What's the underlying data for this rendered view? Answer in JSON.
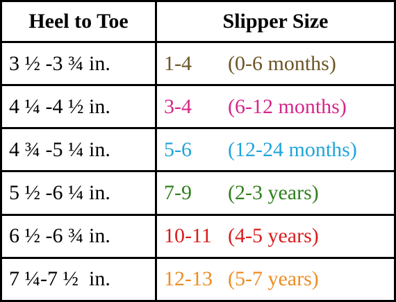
{
  "table": {
    "header": [
      "Heel to Toe",
      "Slipper Size"
    ],
    "rows": [
      {
        "heel": "3 ½ -3 ¾ in.",
        "size": "1-4",
        "age": "(0-6 months)",
        "color": "#6b5526"
      },
      {
        "heel": "4 ¼ -4 ½ in.",
        "size": "3-4",
        "age": "(6-12 months)",
        "color": "#d6268a"
      },
      {
        "heel": "4 ¾ -5 ¼ in.",
        "size": "5-6",
        "age": "(12-24 months)",
        "color": "#20a4da"
      },
      {
        "heel": "5 ½ -6 ¼ in.",
        "size": "7-9",
        "age": "(2-3 years)",
        "color": "#2f7f1c"
      },
      {
        "heel": "6 ½ -6 ¾ in.",
        "size": "10-11",
        "age": "(4-5 years)",
        "color": "#da1c1c"
      },
      {
        "heel": "7 ¼-7 ½  in.",
        "size": "12-13",
        "age": "(5-7 years)",
        "color": "#ec8d23"
      }
    ]
  }
}
